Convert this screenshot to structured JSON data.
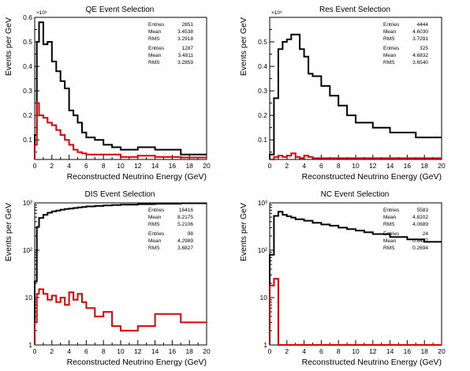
{
  "figure": {
    "xlabel": "Reconstructed Neutrino Energy (GeV)",
    "ylabel": "Events per GeV"
  },
  "chart_data": [
    {
      "type": "line",
      "title": "QE Event Selection",
      "xlabel": "Reconstructed Neutrino Energy (GeV)",
      "ylabel": "Events per GeV",
      "y_multiplier": "×10³",
      "xlim": [
        0,
        20
      ],
      "ylim": [
        0.02,
        0.6
      ],
      "y_scale": "linear",
      "x_ticks": [
        0,
        2,
        4,
        6,
        8,
        10,
        12,
        14,
        16,
        18,
        20
      ],
      "y_ticks": [
        0.1,
        0.2,
        0.3,
        0.4,
        0.5,
        0.6
      ],
      "y_tick_labels": [
        "0.1",
        "0.2",
        "0.3",
        "0.4",
        "0.5",
        "0.6"
      ],
      "bin_edges": [
        0,
        0.25,
        0.5,
        1,
        1.5,
        2,
        2.5,
        3,
        3.5,
        4,
        4.5,
        5,
        5.5,
        6,
        7,
        8,
        9,
        10,
        12,
        14,
        17,
        20
      ],
      "series": [
        {
          "color": "#000000",
          "values": [
            0.12,
            0.5,
            0.58,
            0.49,
            0.5,
            0.42,
            0.38,
            0.34,
            0.31,
            0.22,
            0.2,
            0.17,
            0.13,
            0.11,
            0.1,
            0.08,
            0.07,
            0.06,
            0.07,
            0.06,
            0.04
          ]
        },
        {
          "color": "#dd0000",
          "values": [
            0.08,
            0.25,
            0.2,
            0.19,
            0.17,
            0.16,
            0.14,
            0.12,
            0.1,
            0.08,
            0.06,
            0.05,
            0.045,
            0.04,
            0.04,
            0.04,
            0.04,
            0.03,
            0.035,
            0.03,
            0.028
          ]
        }
      ],
      "stats": [
        [
          [
            "Entries",
            "2851"
          ],
          [
            "Mean",
            "3.4538"
          ],
          [
            "RMS",
            "3.2918"
          ]
        ],
        [
          [
            "Entries",
            "1287"
          ],
          [
            "Mean",
            "3.4811"
          ],
          [
            "RMS",
            "3.2859"
          ]
        ]
      ]
    },
    {
      "type": "line",
      "title": "Res Event Selection",
      "xlabel": "Reconstructed Neutrino Energy (GeV)",
      "ylabel": "Events per GeV",
      "y_multiplier": "×10³",
      "xlim": [
        0,
        20
      ],
      "ylim": [
        0.02,
        0.6
      ],
      "y_scale": "linear",
      "x_ticks": [
        0,
        2,
        4,
        6,
        8,
        10,
        12,
        14,
        16,
        18,
        20
      ],
      "y_ticks": [
        0.1,
        0.2,
        0.3,
        0.4,
        0.5
      ],
      "y_tick_labels": [
        "0.1",
        "0.2",
        "0.3",
        "0.4",
        "0.5"
      ],
      "bin_edges": [
        0,
        0.5,
        1,
        1.5,
        2,
        2.5,
        3,
        3.5,
        4,
        4.5,
        5,
        6,
        7,
        8,
        9,
        10,
        12,
        14,
        17,
        20
      ],
      "series": [
        {
          "color": "#000000",
          "values": [
            0.04,
            0.27,
            0.47,
            0.5,
            0.51,
            0.53,
            0.53,
            0.47,
            0.44,
            0.37,
            0.36,
            0.32,
            0.28,
            0.24,
            0.2,
            0.17,
            0.15,
            0.13,
            0.11
          ]
        },
        {
          "color": "#dd0000",
          "values": [
            0.02,
            0.03,
            0.035,
            0.03,
            0.035,
            0.045,
            0.03,
            0.025,
            0.035,
            0.03,
            0.025,
            0.025,
            0.025,
            0.025,
            0.025,
            0.025,
            0.025,
            0.025,
            0.025
          ]
        }
      ],
      "stats": [
        [
          [
            "Entries",
            "4444"
          ],
          [
            "Mean",
            "4.6030"
          ],
          [
            "RMS",
            "3.7291"
          ]
        ],
        [
          [
            "Entries",
            "325"
          ],
          [
            "Mean",
            "4.6832"
          ],
          [
            "RMS",
            "3.6540"
          ]
        ]
      ]
    },
    {
      "type": "line",
      "title": "DIS Event Selection",
      "xlabel": "Reconstructed Neutrino Energy (GeV)",
      "ylabel": "Events per GeV",
      "y_multiplier": "",
      "xlim": [
        0,
        20
      ],
      "ylim": [
        1,
        1000
      ],
      "y_scale": "log",
      "x_ticks": [
        0,
        2,
        4,
        6,
        8,
        10,
        12,
        14,
        16,
        18,
        20
      ],
      "y_ticks": [
        1,
        10,
        100,
        1000
      ],
      "y_tick_labels": [
        "1",
        "10",
        "10²",
        "10³"
      ],
      "bin_edges": [
        0,
        0.25,
        0.5,
        1,
        1.5,
        2,
        2.5,
        3,
        3.5,
        4,
        4.5,
        5,
        5.5,
        6,
        7,
        8,
        9,
        10,
        12,
        14,
        17,
        20
      ],
      "series": [
        {
          "color": "#000000",
          "values": [
            22,
            310,
            480,
            560,
            620,
            660,
            690,
            720,
            740,
            760,
            780,
            800,
            820,
            840,
            860,
            880,
            900,
            920,
            940,
            960,
            980
          ]
        },
        {
          "color": "#dd0000",
          "values": [
            3,
            12,
            15,
            12,
            9,
            11,
            8,
            10,
            7,
            13,
            9,
            12,
            8,
            6,
            4,
            5,
            2.5,
            2,
            2.5,
            4.5,
            3
          ]
        }
      ],
      "stats": [
        [
          [
            "Entries",
            "16416"
          ],
          [
            "Mean",
            "8.2175"
          ],
          [
            "RMS",
            "5.2106"
          ]
        ],
        [
          [
            "Entries",
            "98"
          ],
          [
            "Mean",
            "4.2989"
          ],
          [
            "RMS",
            "3.6827"
          ]
        ]
      ]
    },
    {
      "type": "line",
      "title": "NC Event Selection",
      "xlabel": "Reconstructed Neutrino Energy (GeV)",
      "ylabel": "Events per GeV",
      "y_multiplier": "",
      "xlim": [
        0,
        20
      ],
      "ylim": [
        1,
        1000
      ],
      "y_scale": "log",
      "x_ticks": [
        0,
        2,
        4,
        6,
        8,
        10,
        12,
        14,
        16,
        18,
        20
      ],
      "y_ticks": [
        1,
        10,
        100,
        1000
      ],
      "y_tick_labels": [
        "1",
        "10",
        "10²",
        "10³"
      ],
      "bin_edges": [
        0,
        0.5,
        1,
        1.5,
        2,
        2.5,
        3,
        4,
        5,
        6,
        7,
        8,
        9,
        10,
        11,
        12,
        14,
        16,
        18,
        20
      ],
      "series": [
        {
          "color": "#000000",
          "values": [
            80,
            530,
            650,
            560,
            520,
            490,
            450,
            420,
            380,
            350,
            330,
            300,
            280,
            260,
            240,
            220,
            190,
            170,
            150
          ]
        },
        {
          "color": "#dd0000",
          "values": [
            18,
            25,
            1,
            1,
            1,
            1,
            1,
            1,
            1,
            1,
            1,
            1,
            1,
            1,
            1,
            1,
            1,
            1,
            1
          ]
        }
      ],
      "stats": [
        [
          [
            "Entries",
            "5583"
          ],
          [
            "Mean",
            "4.8202"
          ],
          [
            "RMS",
            "4.0689"
          ]
        ],
        [
          [
            "Entries",
            "24"
          ],
          [
            "Mean",
            "0.6487"
          ],
          [
            "RMS",
            "0.2694"
          ]
        ]
      ]
    }
  ]
}
